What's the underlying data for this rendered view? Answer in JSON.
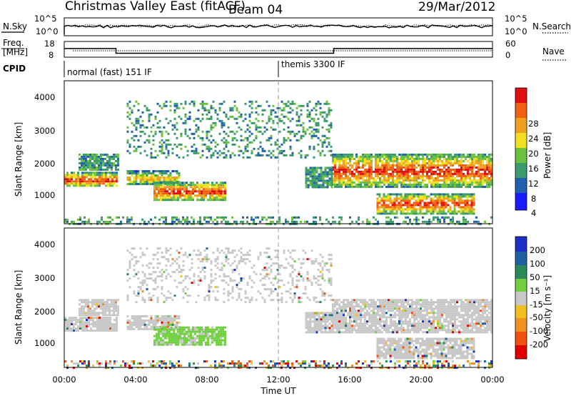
{
  "header": {
    "title": "Christmas Valley East (fitACF)",
    "beam": "Beam 04",
    "date": "29/Mar/2012"
  },
  "noise_panel": {
    "left_label": "N.Sky",
    "right_label": "N.Search",
    "left_ticks": [
      "10^5",
      "10^0"
    ],
    "right_ticks": [
      "10^5",
      "10^0"
    ]
  },
  "freq_panel": {
    "left_label_line1": "Freq.",
    "left_label_line2": "[MHz]",
    "right_label": "Nave",
    "left_ticks": [
      "18",
      "8"
    ],
    "right_ticks": [
      "60",
      "0"
    ]
  },
  "cpid_panel": {
    "label": "CPID",
    "modes": [
      {
        "text": "normal (fast) 151 IF",
        "start_hour": 0,
        "end_hour": 12
      },
      {
        "text": "themis 3300 IF",
        "start_hour": 12,
        "end_hour": 24
      }
    ]
  },
  "power_panel": {
    "ylabel": "Slant Range [km]",
    "yticks": [
      "4000",
      "3000",
      "2000",
      "1000"
    ],
    "colorbar_label": "Power [dB]",
    "colorbar_ticks": [
      "28",
      "24",
      "20",
      "16",
      "12",
      "8",
      "4"
    ]
  },
  "velocity_panel": {
    "ylabel": "Slant Range [km]",
    "yticks": [
      "4000",
      "3000",
      "2000",
      "1000"
    ],
    "colorbar_label": "Velocity [m s⁻¹]",
    "colorbar_ticks": [
      "200",
      "100",
      "50",
      "15",
      "-15",
      "-50",
      "-100",
      "-200"
    ]
  },
  "xaxis": {
    "label": "Time UT",
    "ticks": [
      "00:00",
      "04:00",
      "08:00",
      "12:00",
      "16:00",
      "20:00",
      "00:00"
    ]
  },
  "chart_data": {
    "type": "heatmap",
    "x_range_hours": [
      0,
      24
    ],
    "y_range_km": [
      180,
      4500
    ],
    "freq_step": {
      "low_mhz": 10.5,
      "high_mhz": 13.5,
      "low_start_hour": 2.9,
      "low_end_hour": 15.1
    },
    "colors": {
      "power": [
        "#1a1aff",
        "#2060b0",
        "#3a9a6a",
        "#6cc040",
        "#f0e020",
        "#f0a020",
        "#f06010",
        "#e01010"
      ],
      "velocity": [
        "#1a30c8",
        "#2060a0",
        "#2a8a5a",
        "#70d040",
        "#c8c8c8",
        "#f0c020",
        "#f09020",
        "#f05010",
        "#e00000"
      ]
    },
    "echo_regions": [
      {
        "name": "band-early",
        "hours": [
          0,
          3.0
        ],
        "km": [
          1300,
          1750
        ],
        "power": "strong",
        "velocity": "grey"
      },
      {
        "name": "band-early-upper",
        "hours": [
          0.8,
          3.0
        ],
        "km": [
          1800,
          2300
        ],
        "power": "weak",
        "velocity": "grey"
      },
      {
        "name": "patch-midmorning",
        "hours": [
          3.5,
          6.5
        ],
        "km": [
          1350,
          1800
        ],
        "power": "medium",
        "velocity": "grey"
      },
      {
        "name": "blob-morning",
        "hours": [
          5.0,
          9.0
        ],
        "km": [
          900,
          1450
        ],
        "power": "strong",
        "velocity": "green"
      },
      {
        "name": "arc-evening",
        "hours": [
          3.5,
          15.0
        ],
        "km": [
          2200,
          3900
        ],
        "power": "weak",
        "velocity": "grey"
      },
      {
        "name": "band-late",
        "hours": [
          15.0,
          24.0
        ],
        "km": [
          1300,
          2300
        ],
        "power": "strong",
        "velocity": "grey"
      },
      {
        "name": "band-late-lower",
        "hours": [
          17.5,
          23.0
        ],
        "km": [
          500,
          1100
        ],
        "power": "strong",
        "velocity": "grey"
      },
      {
        "name": "patch-14h",
        "hours": [
          13.5,
          15.0
        ],
        "km": [
          1300,
          1900
        ],
        "power": "weak",
        "velocity": "grey"
      },
      {
        "name": "ground-scatter-strip",
        "hours": [
          0,
          24
        ],
        "km": [
          180,
          400
        ],
        "power": "weak",
        "velocity": "mixed"
      }
    ]
  }
}
